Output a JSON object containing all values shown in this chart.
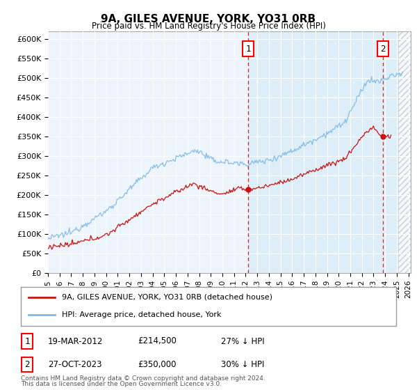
{
  "title": "9A, GILES AVENUE, YORK, YO31 0RB",
  "subtitle": "Price paid vs. HM Land Registry's House Price Index (HPI)",
  "ylabel_ticks": [
    "£0",
    "£50K",
    "£100K",
    "£150K",
    "£200K",
    "£250K",
    "£300K",
    "£350K",
    "£400K",
    "£450K",
    "£500K",
    "£550K",
    "£600K"
  ],
  "ylim": [
    0,
    620000
  ],
  "xlim_start": 1995.0,
  "xlim_end": 2026.2,
  "hpi_color": "#7ab8e8",
  "hpi_fill_color": "#ddeef8",
  "price_color": "#cc1111",
  "marker1_date": 2012.22,
  "marker1_price": 214500,
  "marker1_label": "1",
  "marker2_date": 2023.83,
  "marker2_price": 350000,
  "marker2_label": "2",
  "legend_line1": "9A, GILES AVENUE, YORK, YO31 0RB (detached house)",
  "legend_line2": "HPI: Average price, detached house, York",
  "footnote1": "Contains HM Land Registry data © Crown copyright and database right 2024.",
  "footnote2": "This data is licensed under the Open Government Licence v3.0.",
  "grid_color": "#d8e4f0",
  "plot_bg": "#f0f4f8"
}
